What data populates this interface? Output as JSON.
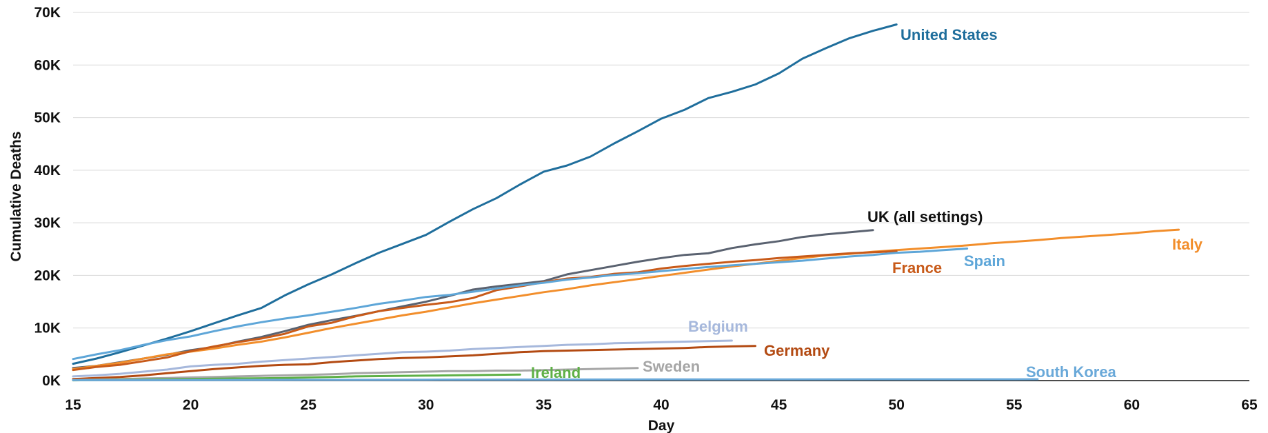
{
  "chart_data": {
    "type": "line",
    "xlabel": "Day",
    "ylabel": "Cumulative Deaths",
    "xlim": [
      15,
      65
    ],
    "ylim": [
      0,
      70000
    ],
    "x_ticks": [
      15,
      20,
      25,
      30,
      35,
      40,
      45,
      50,
      55,
      60,
      65
    ],
    "x_tick_labels": [
      "15",
      "20",
      "25",
      "30",
      "35",
      "40",
      "45",
      "50",
      "55",
      "60",
      "65"
    ],
    "y_ticks": [
      0,
      10000,
      20000,
      30000,
      40000,
      50000,
      60000,
      70000
    ],
    "y_tick_labels": [
      "0K",
      "10K",
      "20K",
      "30K",
      "40K",
      "50K",
      "60K",
      "70K"
    ],
    "grid": "horizontal",
    "legend": "direct labels at line ends",
    "series": [
      {
        "name": "United States",
        "color": "#1f6e9c",
        "x": [
          15,
          16,
          17,
          18,
          19,
          20,
          21,
          22,
          23,
          24,
          25,
          26,
          27,
          28,
          29,
          30,
          31,
          32,
          33,
          34,
          35,
          36,
          37,
          38,
          39,
          40,
          41,
          42,
          43,
          44,
          45,
          46,
          47,
          48,
          49,
          50
        ],
        "y": [
          3200,
          4200,
          5400,
          6700,
          8000,
          9400,
          10900,
          12400,
          13800,
          16200,
          18300,
          20200,
          22300,
          24300,
          26000,
          27700,
          30200,
          32600,
          34700,
          37300,
          39700,
          40900,
          42600,
          45100,
          47400,
          49800,
          51500,
          53700,
          54900,
          56300,
          58400,
          61200,
          63200,
          65100,
          66500,
          67700
        ]
      },
      {
        "name": "UK (all settings)",
        "color": "#5a6270",
        "x": [
          15,
          16,
          17,
          18,
          19,
          20,
          21,
          22,
          23,
          24,
          25,
          26,
          27,
          28,
          29,
          30,
          31,
          32,
          33,
          34,
          35,
          36,
          37,
          38,
          39,
          40,
          41,
          42,
          43,
          44,
          45,
          46,
          47,
          48,
          49
        ],
        "y": [
          2400,
          2800,
          3500,
          4200,
          4900,
          5800,
          6400,
          7400,
          8300,
          9400,
          10600,
          11500,
          12300,
          13200,
          14100,
          15000,
          16100,
          17300,
          17900,
          18400,
          18900,
          20200,
          21000,
          21800,
          22600,
          23300,
          23900,
          24200,
          25200,
          25900,
          26500,
          27300,
          27800,
          28200,
          28600
        ]
      },
      {
        "name": "Italy",
        "color": "#f28e2b",
        "x": [
          15,
          16,
          17,
          18,
          19,
          20,
          21,
          22,
          23,
          24,
          25,
          26,
          27,
          28,
          29,
          30,
          31,
          32,
          33,
          34,
          35,
          36,
          37,
          38,
          39,
          40,
          41,
          42,
          43,
          44,
          45,
          46,
          47,
          48,
          49,
          50,
          51,
          52,
          53,
          54,
          55,
          56,
          57,
          58,
          59,
          60,
          61,
          62
        ],
        "y": [
          2200,
          2800,
          3400,
          4200,
          5000,
          5500,
          6100,
          6800,
          7400,
          8200,
          9100,
          10000,
          10800,
          11600,
          12400,
          13100,
          13900,
          14700,
          15400,
          16100,
          16800,
          17400,
          18100,
          18700,
          19300,
          19900,
          20500,
          21100,
          21700,
          22200,
          22800,
          23300,
          23800,
          24100,
          24500,
          24800,
          25100,
          25400,
          25700,
          26100,
          26400,
          26700,
          27100,
          27400,
          27700,
          28000,
          28400,
          28700
        ]
      },
      {
        "name": "France",
        "color": "#c85a19",
        "x": [
          15,
          16,
          17,
          18,
          19,
          20,
          21,
          22,
          23,
          24,
          25,
          26,
          27,
          28,
          29,
          30,
          31,
          32,
          33,
          34,
          35,
          36,
          37,
          38,
          39,
          40,
          41,
          42,
          43,
          44,
          45,
          46,
          47,
          48,
          49,
          50
        ],
        "y": [
          2000,
          2600,
          3000,
          3700,
          4400,
          5600,
          6500,
          7300,
          8000,
          8900,
          10300,
          11000,
          12200,
          13200,
          13800,
          14400,
          14900,
          15700,
          17200,
          17900,
          18700,
          19400,
          19700,
          20300,
          20600,
          21300,
          21800,
          22200,
          22600,
          22900,
          23300,
          23600,
          23900,
          24200,
          24400,
          24600
        ]
      },
      {
        "name": "Spain",
        "color": "#5ea6d8",
        "x": [
          15,
          16,
          17,
          18,
          19,
          20,
          21,
          22,
          23,
          24,
          25,
          26,
          27,
          28,
          29,
          30,
          31,
          32,
          33,
          34,
          35,
          36,
          37,
          38,
          39,
          40,
          41,
          42,
          43,
          44,
          45,
          46,
          47,
          48,
          49,
          50,
          51,
          52,
          53
        ],
        "y": [
          4100,
          5000,
          5800,
          6800,
          7700,
          8400,
          9400,
          10300,
          11100,
          11800,
          12400,
          13100,
          13800,
          14600,
          15200,
          15900,
          16300,
          16900,
          17500,
          18100,
          18600,
          19200,
          19600,
          20100,
          20400,
          20800,
          21200,
          21600,
          21900,
          22200,
          22500,
          22800,
          23200,
          23600,
          23900,
          24300,
          24500,
          24800,
          25100
        ]
      },
      {
        "name": "Belgium",
        "color": "#a6b8dc",
        "x": [
          15,
          16,
          17,
          18,
          19,
          20,
          21,
          22,
          23,
          24,
          25,
          26,
          27,
          28,
          29,
          30,
          31,
          32,
          33,
          34,
          35,
          36,
          37,
          38,
          39,
          40,
          41,
          42,
          43
        ],
        "y": [
          800,
          1000,
          1300,
          1700,
          2100,
          2700,
          3000,
          3200,
          3600,
          3900,
          4200,
          4500,
          4800,
          5100,
          5400,
          5500,
          5700,
          6000,
          6200,
          6400,
          6600,
          6800,
          6900,
          7100,
          7200,
          7300,
          7400,
          7500,
          7600
        ]
      },
      {
        "name": "Germany",
        "color": "#b34a12",
        "x": [
          15,
          16,
          17,
          18,
          19,
          20,
          21,
          22,
          23,
          24,
          25,
          26,
          27,
          28,
          29,
          30,
          31,
          32,
          33,
          34,
          35,
          36,
          37,
          38,
          39,
          40,
          41,
          42,
          43,
          44
        ],
        "y": [
          300,
          500,
          700,
          1000,
          1400,
          1800,
          2200,
          2500,
          2800,
          3000,
          3100,
          3500,
          3800,
          4100,
          4300,
          4400,
          4600,
          4800,
          5100,
          5400,
          5600,
          5700,
          5800,
          5900,
          6000,
          6100,
          6200,
          6400,
          6500,
          6600
        ]
      },
      {
        "name": "Sweden",
        "color": "#a6a6a6",
        "x": [
          15,
          16,
          17,
          18,
          19,
          20,
          21,
          22,
          23,
          24,
          25,
          26,
          27,
          28,
          29,
          30,
          31,
          32,
          33,
          34,
          35,
          36,
          37,
          38,
          39
        ],
        "y": [
          100,
          200,
          300,
          400,
          500,
          600,
          700,
          800,
          900,
          1000,
          1100,
          1200,
          1400,
          1500,
          1600,
          1700,
          1800,
          1800,
          1900,
          1900,
          2000,
          2100,
          2200,
          2300,
          2400
        ]
      },
      {
        "name": "Ireland",
        "color": "#5eb046",
        "x": [
          15,
          16,
          17,
          18,
          19,
          20,
          21,
          22,
          23,
          24,
          25,
          26,
          27,
          28,
          29,
          30,
          31,
          32,
          33,
          34
        ],
        "y": [
          50,
          100,
          150,
          200,
          250,
          300,
          350,
          400,
          450,
          500,
          600,
          700,
          800,
          850,
          900,
          950,
          1000,
          1050,
          1100,
          1150
        ]
      },
      {
        "name": "South Korea",
        "color": "#6aa9d9",
        "x": [
          15,
          20,
          25,
          30,
          35,
          40,
          45,
          50,
          55,
          56
        ],
        "y": [
          80,
          100,
          150,
          170,
          200,
          220,
          240,
          250,
          255,
          260
        ]
      }
    ]
  }
}
